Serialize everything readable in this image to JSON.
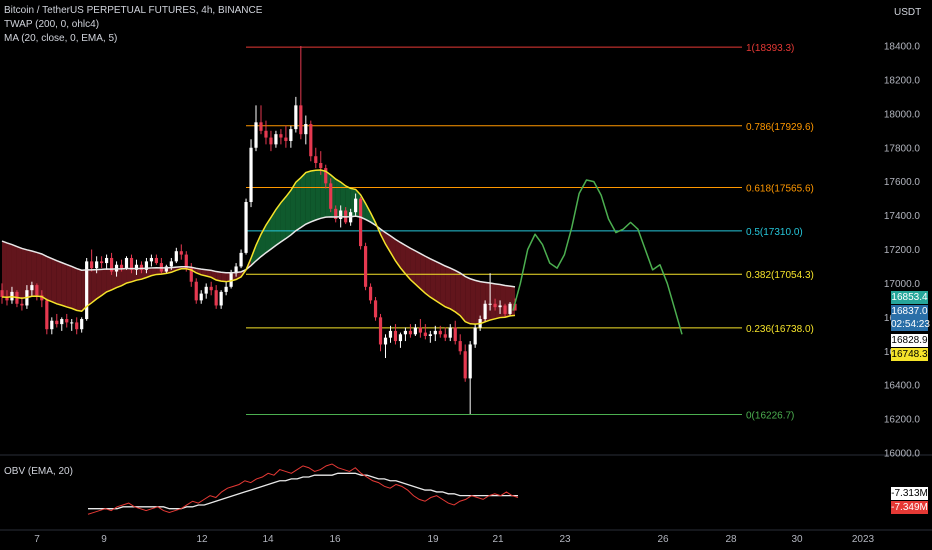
{
  "header": {
    "title": "Bitcoin / TetherUS PERPETUAL FUTURES, 4h, BINANCE",
    "indicator_1": "TWAP (200, 0, ohlc4)",
    "indicator_2": "MA (20, close, 0, EMA, 5)",
    "currency": "USDT"
  },
  "price_tags": [
    {
      "label": "16853.4",
      "bg": "#26a69a",
      "fg": "#ffffff"
    },
    {
      "label": "16837.0",
      "bg": "#2a6fa8",
      "fg": "#ffffff"
    },
    {
      "label": "02:54:23",
      "bg": "#2a6fa8",
      "fg": "#ffffff"
    },
    {
      "label": "16828.9",
      "bg": "#ffffff",
      "fg": "#000000"
    },
    {
      "label": "16748.3",
      "bg": "#f5e32a",
      "fg": "#000000"
    }
  ],
  "obv": {
    "label": "OBV (EMA, 20)",
    "tags": [
      {
        "label": "-7.313M",
        "bg": "#ffffff",
        "fg": "#000000"
      },
      {
        "label": "-7.349M",
        "bg": "#e53935",
        "fg": "#ffffff"
      }
    ]
  },
  "chart_data": {
    "type": "candlestick",
    "y_axis": {
      "ticks": [
        16000,
        16200,
        16400,
        16600,
        16800,
        17000,
        17200,
        17400,
        17600,
        17800,
        18000,
        18200,
        18400
      ],
      "labels": [
        "16000.0",
        "16200.0",
        "16400.0",
        "16600.0",
        "16800.0",
        "17000.0",
        "17200.0",
        "17400.0",
        "17600.0",
        "17800.0",
        "18000.0",
        "18200.0",
        "18400.0"
      ]
    },
    "x_axis": {
      "labels": [
        "7",
        "9",
        "12",
        "14",
        "16",
        "19",
        "21",
        "23",
        "26",
        "28",
        "30",
        "2023"
      ]
    },
    "fib_levels": [
      {
        "ratio": "1",
        "price": 18393.3,
        "label": "1(18393.3)",
        "color": "#e53935"
      },
      {
        "ratio": "0.786",
        "price": 17929.6,
        "label": "0.786(17929.6)",
        "color": "#ff9800"
      },
      {
        "ratio": "0.618",
        "price": 17565.6,
        "label": "0.618(17565.6)",
        "color": "#ff9800"
      },
      {
        "ratio": "0.5",
        "price": 17310.0,
        "label": "0.5(17310.0)",
        "color": "#26c6da"
      },
      {
        "ratio": "0.382",
        "price": 17054.3,
        "label": "0.382(17054.3)",
        "color": "#f5e32a"
      },
      {
        "ratio": "0.236",
        "price": 16738.0,
        "label": "0.236(16738.0)",
        "color": "#f5e32a"
      },
      {
        "ratio": "0",
        "price": 16226.7,
        "label": "0(16226.7)",
        "color": "#4caf50"
      }
    ],
    "projection": [
      [
        0,
        16840
      ],
      [
        1,
        17000
      ],
      [
        2,
        17200
      ],
      [
        3,
        17290
      ],
      [
        4,
        17230
      ],
      [
        5,
        17120
      ],
      [
        6,
        17090
      ],
      [
        7,
        17170
      ],
      [
        8,
        17330
      ],
      [
        9,
        17530
      ],
      [
        10,
        17610
      ],
      [
        11,
        17600
      ],
      [
        12,
        17520
      ],
      [
        13,
        17380
      ],
      [
        14,
        17300
      ],
      [
        15,
        17320
      ],
      [
        16,
        17360
      ],
      [
        17,
        17320
      ],
      [
        18,
        17200
      ],
      [
        19,
        17080
      ],
      [
        20,
        17110
      ],
      [
        21,
        17000
      ],
      [
        22,
        16850
      ],
      [
        23,
        16700
      ]
    ],
    "series": [
      {
        "name": "TWAP (200, 0, ohlc4)",
        "color": "#e8e8e8"
      },
      {
        "name": "MA (20, close, 0, EMA, 5)",
        "color": "#f5e32a"
      }
    ],
    "candles": [
      [
        16960,
        17000,
        16880,
        16920
      ],
      [
        16920,
        16960,
        16870,
        16900
      ],
      [
        16900,
        16980,
        16880,
        16950
      ],
      [
        16950,
        16960,
        16860,
        16880
      ],
      [
        16880,
        16920,
        16840,
        16870
      ],
      [
        16870,
        16990,
        16850,
        16960
      ],
      [
        16960,
        17010,
        16920,
        16990
      ],
      [
        16990,
        17000,
        16900,
        16930
      ],
      [
        16930,
        16960,
        16860,
        16900
      ],
      [
        16900,
        16910,
        16700,
        16730
      ],
      [
        16730,
        16800,
        16700,
        16780
      ],
      [
        16780,
        16820,
        16740,
        16760
      ],
      [
        16760,
        16800,
        16720,
        16790
      ],
      [
        16790,
        16820,
        16740,
        16770
      ],
      [
        16770,
        16790,
        16720,
        16770
      ],
      [
        16770,
        16800,
        16700,
        16730
      ],
      [
        16730,
        16800,
        16710,
        16790
      ],
      [
        16790,
        17150,
        16780,
        17130
      ],
      [
        17130,
        17200,
        17070,
        17090
      ],
      [
        17090,
        17160,
        17060,
        17130
      ],
      [
        17130,
        17160,
        17090,
        17120
      ],
      [
        17120,
        17170,
        17080,
        17150
      ],
      [
        17150,
        17180,
        17050,
        17070
      ],
      [
        17070,
        17130,
        17040,
        17110
      ],
      [
        17110,
        17140,
        17070,
        17090
      ],
      [
        17090,
        17160,
        17080,
        17150
      ],
      [
        17150,
        17170,
        17060,
        17080
      ],
      [
        17080,
        17140,
        17050,
        17110
      ],
      [
        17110,
        17130,
        17060,
        17080
      ],
      [
        17080,
        17150,
        17060,
        17130
      ],
      [
        17130,
        17170,
        17100,
        17150
      ],
      [
        17150,
        17170,
        17110,
        17120
      ],
      [
        17120,
        17150,
        17060,
        17070
      ],
      [
        17070,
        17110,
        17060,
        17100
      ],
      [
        17100,
        17150,
        17080,
        17130
      ],
      [
        17130,
        17210,
        17120,
        17190
      ],
      [
        17190,
        17230,
        17140,
        17170
      ],
      [
        17170,
        17190,
        17070,
        17090
      ],
      [
        17090,
        17120,
        16980,
        17010
      ],
      [
        17010,
        17030,
        16880,
        16900
      ],
      [
        16900,
        16960,
        16880,
        16940
      ],
      [
        16940,
        17000,
        16910,
        16980
      ],
      [
        16980,
        17010,
        16930,
        16960
      ],
      [
        16960,
        16990,
        16850,
        16870
      ],
      [
        16870,
        16960,
        16850,
        16950
      ],
      [
        16950,
        17010,
        16930,
        16980
      ],
      [
        16980,
        17080,
        16970,
        17060
      ],
      [
        17060,
        17120,
        17040,
        17100
      ],
      [
        17100,
        17200,
        17090,
        17180
      ],
      [
        17180,
        17500,
        17170,
        17480
      ],
      [
        17480,
        17850,
        17450,
        17800
      ],
      [
        17800,
        18050,
        17780,
        17950
      ],
      [
        17950,
        18050,
        17880,
        17900
      ],
      [
        17900,
        17960,
        17820,
        17860
      ],
      [
        17860,
        17900,
        17780,
        17820
      ],
      [
        17820,
        17900,
        17800,
        17880
      ],
      [
        17880,
        17910,
        17820,
        17860
      ],
      [
        17860,
        17930,
        17800,
        17840
      ],
      [
        17840,
        17930,
        17800,
        17910
      ],
      [
        17910,
        18100,
        17890,
        18050
      ],
      [
        18050,
        18400,
        17850,
        17880
      ],
      [
        17880,
        17990,
        17820,
        17940
      ],
      [
        17940,
        17960,
        17720,
        17750
      ],
      [
        17750,
        17800,
        17680,
        17710
      ],
      [
        17710,
        17780,
        17640,
        17680
      ],
      [
        17680,
        17700,
        17560,
        17590
      ],
      [
        17590,
        17620,
        17420,
        17440
      ],
      [
        17440,
        17460,
        17360,
        17380
      ],
      [
        17380,
        17460,
        17330,
        17430
      ],
      [
        17430,
        17450,
        17350,
        17360
      ],
      [
        17360,
        17440,
        17340,
        17420
      ],
      [
        17420,
        17530,
        17400,
        17500
      ],
      [
        17500,
        17510,
        17200,
        17220
      ],
      [
        17220,
        17240,
        16960,
        16980
      ],
      [
        16980,
        17000,
        16880,
        16900
      ],
      [
        16900,
        16920,
        16780,
        16800
      ],
      [
        16800,
        16820,
        16600,
        16640
      ],
      [
        16640,
        16700,
        16560,
        16680
      ],
      [
        16680,
        16750,
        16650,
        16720
      ],
      [
        16720,
        16760,
        16640,
        16660
      ],
      [
        16660,
        16710,
        16620,
        16700
      ],
      [
        16700,
        16740,
        16660,
        16720
      ],
      [
        16720,
        16760,
        16680,
        16700
      ],
      [
        16700,
        16760,
        16690,
        16740
      ],
      [
        16740,
        16790,
        16680,
        16710
      ],
      [
        16710,
        16760,
        16670,
        16690
      ],
      [
        16690,
        16720,
        16650,
        16700
      ],
      [
        16700,
        16750,
        16660,
        16720
      ],
      [
        16720,
        16750,
        16680,
        16700
      ],
      [
        16700,
        16740,
        16660,
        16680
      ],
      [
        16680,
        16760,
        16660,
        16740
      ],
      [
        16740,
        16780,
        16640,
        16660
      ],
      [
        16660,
        16700,
        16580,
        16600
      ],
      [
        16600,
        16640,
        16420,
        16440
      ],
      [
        16440,
        16660,
        16230,
        16640
      ],
      [
        16640,
        16760,
        16620,
        16740
      ],
      [
        16740,
        16810,
        16720,
        16790
      ],
      [
        16790,
        16900,
        16770,
        16880
      ],
      [
        16880,
        17060,
        16840,
        16880
      ],
      [
        16880,
        16910,
        16840,
        16860
      ],
      [
        16860,
        16900,
        16820,
        16870
      ],
      [
        16870,
        16880,
        16800,
        16820
      ],
      [
        16820,
        16890,
        16810,
        16880
      ],
      [
        16880,
        16910,
        16850,
        16840
      ]
    ],
    "obv": {
      "main": [
        40,
        41,
        42,
        43,
        42,
        44,
        45,
        46,
        44,
        43,
        42,
        43,
        44,
        42,
        41,
        42,
        43,
        45,
        47,
        46,
        48,
        50,
        49,
        52,
        54,
        55,
        56,
        58,
        57,
        59,
        60,
        62,
        61,
        64,
        63,
        62,
        64,
        66,
        65,
        63,
        64,
        66,
        67,
        65,
        64,
        63,
        65,
        62,
        60,
        58,
        57,
        55,
        54,
        56,
        55,
        53,
        50,
        48,
        47,
        49,
        50,
        48,
        46,
        45,
        47,
        48,
        50,
        49,
        48,
        50,
        51,
        50,
        52,
        50,
        49
      ],
      "ema": [
        43,
        43,
        43,
        43,
        43,
        43,
        44,
        44,
        44,
        44,
        44,
        44,
        44,
        44,
        43,
        43,
        43,
        44,
        44,
        45,
        45,
        46,
        47,
        48,
        49,
        50,
        51,
        52,
        53,
        54,
        55,
        56,
        57,
        58,
        58,
        59,
        59,
        60,
        60,
        61,
        61,
        61,
        61,
        62,
        62,
        62,
        62,
        61,
        61,
        60,
        59,
        59,
        58,
        58,
        57,
        56,
        55,
        54,
        53,
        53,
        52,
        52,
        51,
        51,
        50,
        50,
        50,
        50,
        50,
        50,
        50,
        50,
        50,
        50,
        50
      ]
    }
  }
}
